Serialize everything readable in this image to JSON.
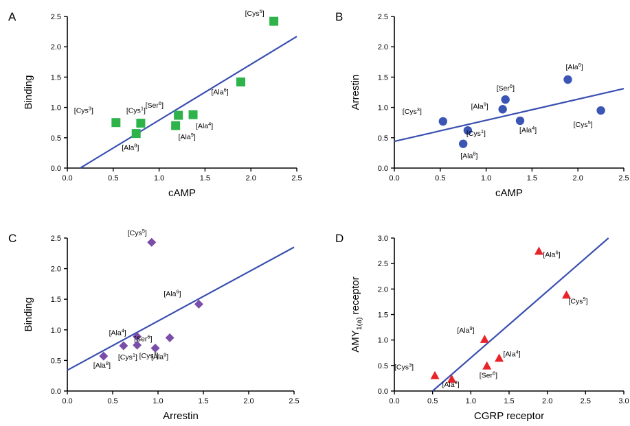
{
  "chart_data": [
    {
      "panel": "A",
      "type": "scatter",
      "xlabel": "cAMP",
      "ylabel": "Binding",
      "xlim": [
        0,
        2.5
      ],
      "ylim": [
        0,
        2.5
      ],
      "xticks": [
        "0.0",
        "0.5",
        "1.0",
        "1.5",
        "2.0",
        "2.5"
      ],
      "yticks": [
        "0.0",
        "0.5",
        "1.0",
        "1.5",
        "2.0",
        "2.5"
      ],
      "marker": "square",
      "color": "#2db34a",
      "points": [
        {
          "label": "Cys",
          "sup": "5",
          "x": 2.25,
          "y": 2.42
        },
        {
          "label": "Ala",
          "sup": "6",
          "x": 1.89,
          "y": 1.42
        },
        {
          "label": "Ser",
          "sup": "6",
          "x": 1.21,
          "y": 0.87
        },
        {
          "label": "Ala",
          "sup": "4",
          "x": 1.37,
          "y": 0.88
        },
        {
          "label": "Ala",
          "sup": "9",
          "x": 1.18,
          "y": 0.7
        },
        {
          "label": "Cys",
          "sup": "3",
          "x": 0.53,
          "y": 0.75
        },
        {
          "label": "Cys",
          "sup": "1",
          "x": 0.8,
          "y": 0.74
        },
        {
          "label": "Ala",
          "sup": "8",
          "x": 0.75,
          "y": 0.57
        }
      ],
      "fit": {
        "x1": 0.14,
        "y1": 0.0,
        "x2": 2.5,
        "y2": 2.17
      }
    },
    {
      "panel": "B",
      "type": "scatter",
      "xlabel": "cAMP",
      "ylabel": "Arrestin",
      "xlim": [
        0,
        2.5
      ],
      "ylim": [
        0,
        2.5
      ],
      "xticks": [
        "0.0",
        "0.5",
        "1.0",
        "1.5",
        "2.0",
        "2.5"
      ],
      "yticks": [
        "0.0",
        "0.5",
        "1.0",
        "1.5",
        "2.0",
        "2.5"
      ],
      "marker": "circle",
      "color": "#3a55b4",
      "points": [
        {
          "label": "Ala",
          "sup": "6",
          "x": 1.89,
          "y": 1.46
        },
        {
          "label": "Ser",
          "sup": "6",
          "x": 1.21,
          "y": 1.13
        },
        {
          "label": "Ala",
          "sup": "9",
          "x": 1.18,
          "y": 0.97
        },
        {
          "label": "Cys",
          "sup": "5",
          "x": 2.25,
          "y": 0.95
        },
        {
          "label": "Cys",
          "sup": "3",
          "x": 0.53,
          "y": 0.77
        },
        {
          "label": "Ala",
          "sup": "4",
          "x": 1.37,
          "y": 0.78
        },
        {
          "label": "Cys",
          "sup": "1",
          "x": 0.8,
          "y": 0.62
        },
        {
          "label": "Ala",
          "sup": "8",
          "x": 0.75,
          "y": 0.4
        }
      ],
      "fit": {
        "x1": 0.0,
        "y1": 0.44,
        "x2": 2.5,
        "y2": 1.31
      }
    },
    {
      "panel": "C",
      "type": "scatter",
      "xlabel": "Arrestin",
      "ylabel": "Binding",
      "xlim": [
        0,
        2.5
      ],
      "ylim": [
        0,
        2.5
      ],
      "xticks": [
        "0.0",
        "0.5",
        "1.0",
        "1.5",
        "2.0",
        "2.5"
      ],
      "yticks": [
        "0.0",
        "0.5",
        "1.0",
        "1.5",
        "2.0",
        "2.5"
      ],
      "marker": "diamond",
      "color": "#7a4ea8",
      "points": [
        {
          "label": "Cys",
          "sup": "5",
          "x": 0.93,
          "y": 2.43
        },
        {
          "label": "Ala",
          "sup": "6",
          "x": 1.45,
          "y": 1.42
        },
        {
          "label": "Ala",
          "sup": "4",
          "x": 0.77,
          "y": 0.89
        },
        {
          "label": "Cys",
          "sup": "1",
          "x": 0.62,
          "y": 0.74
        },
        {
          "label": "Ser",
          "sup": "6",
          "x": 1.13,
          "y": 0.87
        },
        {
          "label": "Ala",
          "sup": "8",
          "x": 0.4,
          "y": 0.57
        },
        {
          "label": "Cys",
          "sup": "3",
          "x": 0.77,
          "y": 0.75
        },
        {
          "label": "Ala",
          "sup": "9",
          "x": 0.97,
          "y": 0.7
        }
      ],
      "fit": {
        "x1": 0.0,
        "y1": 0.34,
        "x2": 2.5,
        "y2": 2.35
      }
    },
    {
      "panel": "D",
      "type": "scatter",
      "xlabel": "CGRP receptor",
      "ylabel": "AMY",
      "ylabel_sub": "1(a)",
      "ylabel_suffix": " receptor",
      "xlim": [
        0,
        3.0
      ],
      "ylim": [
        0,
        3.0
      ],
      "xticks": [
        "0.0",
        "0.5",
        "1.0",
        "1.5",
        "2.0",
        "2.5",
        "3.0"
      ],
      "yticks": [
        "0.0",
        "0.5",
        "1.0",
        "1.5",
        "2.0",
        "2.5",
        "3.0"
      ],
      "marker": "triangle",
      "color": "#e8232a",
      "points": [
        {
          "label": "Ala",
          "sup": "6",
          "x": 1.89,
          "y": 2.74
        },
        {
          "label": "Cys",
          "sup": "5",
          "x": 2.25,
          "y": 1.88
        },
        {
          "label": "Ala",
          "sup": "9",
          "x": 1.18,
          "y": 1.01
        },
        {
          "label": "Ala",
          "sup": "4",
          "x": 1.37,
          "y": 0.64
        },
        {
          "label": "Ser",
          "sup": "6",
          "x": 1.21,
          "y": 0.49
        },
        {
          "label": "Cys",
          "sup": "3",
          "x": 0.53,
          "y": 0.3
        },
        {
          "label": "Ala",
          "sup": "8",
          "x": 0.75,
          "y": 0.23
        }
      ],
      "fit": {
        "x1": 0.5,
        "y1": 0.0,
        "x2": 2.8,
        "y2": 3.0
      }
    }
  ],
  "fit_line_color": "#3a4fb0"
}
